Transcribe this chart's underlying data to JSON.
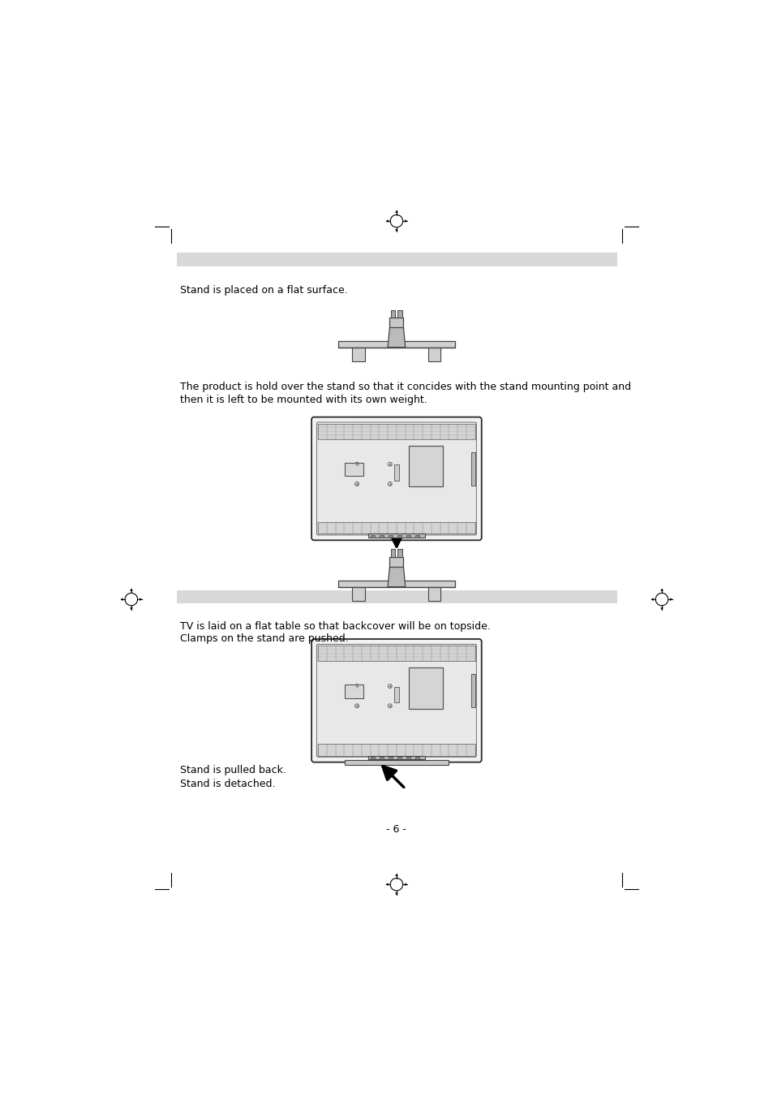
{
  "bg_color": "#ffffff",
  "page_width": 9.54,
  "page_height": 13.51,
  "dpi": 100,
  "gray_bar_color": "#d8d8d8",
  "text_color": "#000000",
  "section1_text1": "Stand is placed on a flat surface.",
  "section1_text2": "The product is hold over the stand so that it concides with the stand mounting point and",
  "section1_text3": "then it is left to be mounted with its own weight.",
  "section2_text1": "TV is laid on a flat table so that backcover will be on topside.",
  "section2_text2": "Clamps on the stand are pushed.",
  "text_pulled": "Stand is pulled back.",
  "text_detached": "Stand is detached.",
  "bottom_text": "- 6 -",
  "font_size_body": 9.0,
  "font_size_page": 9.0
}
